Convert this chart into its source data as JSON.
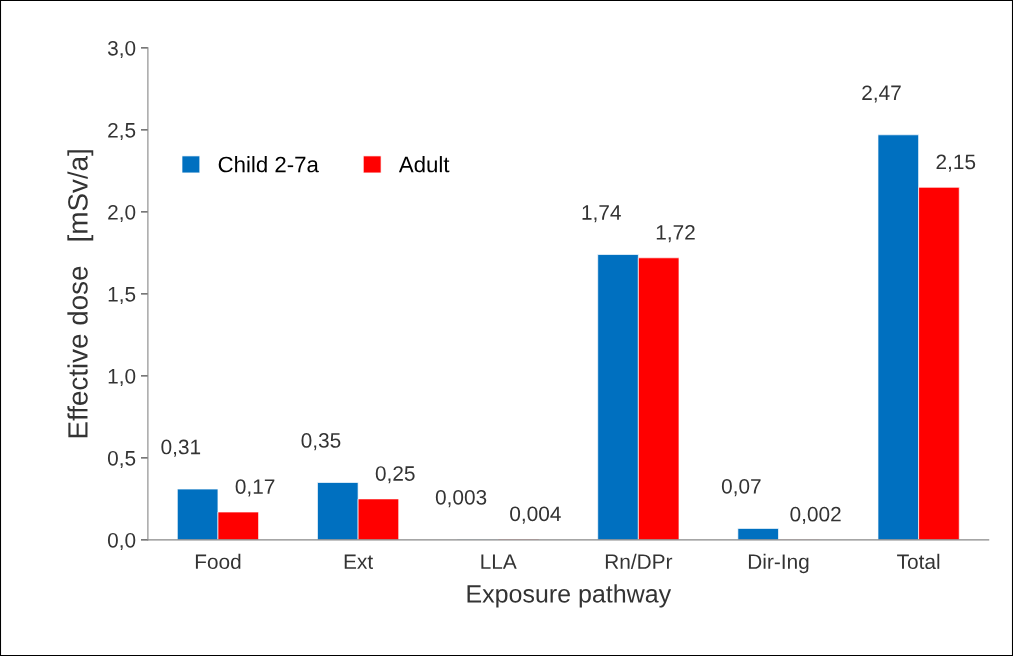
{
  "chart_data": {
    "type": "bar",
    "xlabel": "Exposure pathway",
    "ylabel": "Effective dose   [mSv/a]",
    "categories": [
      "Food",
      "Ext",
      "LLA",
      "Rn/DPr",
      "Dir-Ing",
      "Total"
    ],
    "series": [
      {
        "name": "Child 2-7a",
        "color": "#0070c0",
        "values": [
          0.31,
          0.35,
          0.003,
          1.74,
          0.07,
          2.47
        ],
        "value_labels": [
          "0,31",
          "0,35",
          "0,003",
          "1,74",
          "0,07",
          "2,47"
        ]
      },
      {
        "name": "Adult",
        "color": "#ff0000",
        "values": [
          0.17,
          0.25,
          0.004,
          1.72,
          0.002,
          2.15
        ],
        "value_labels": [
          "0,17",
          "0,25",
          "0,004",
          "1,72",
          "0,002",
          "2,15"
        ]
      }
    ],
    "ylim": [
      0,
      3
    ],
    "yticks": [
      {
        "value": 0,
        "label": "0,0"
      },
      {
        "value": 0.5,
        "label": "0,5"
      },
      {
        "value": 1,
        "label": "1,0"
      },
      {
        "value": 1.5,
        "label": "1,5"
      },
      {
        "value": 2,
        "label": "2,0"
      },
      {
        "value": 2.5,
        "label": "2,5"
      },
      {
        "value": 3,
        "label": "3,0"
      }
    ],
    "grid": false,
    "legend": "top left"
  }
}
